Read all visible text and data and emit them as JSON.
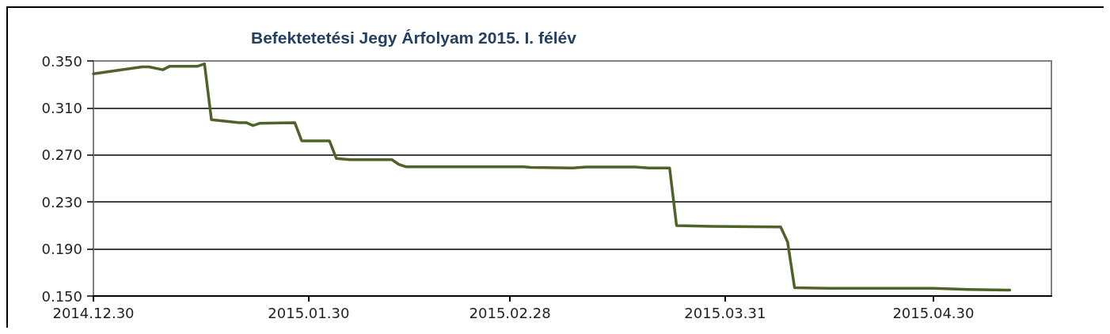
{
  "chart_data": {
    "type": "line",
    "title": "Befektetetési Jegy Árfolyam 2015. I. félév",
    "x": [
      "2014-12-30",
      "2015-01-06",
      "2015-01-07",
      "2015-01-09",
      "2015-01-10",
      "2015-01-14",
      "2015-01-15",
      "2015-01-16",
      "2015-01-20",
      "2015-01-21",
      "2015-01-22",
      "2015-01-23",
      "2015-01-28",
      "2015-01-29",
      "2015-02-02",
      "2015-02-03",
      "2015-02-05",
      "2015-02-11",
      "2015-02-12",
      "2015-02-13",
      "2015-03-02",
      "2015-03-03",
      "2015-03-09",
      "2015-03-11",
      "2015-03-18",
      "2015-03-20",
      "2015-03-23",
      "2015-03-24",
      "2015-03-29",
      "2015-04-08",
      "2015-04-09",
      "2015-04-10",
      "2015-04-15",
      "2015-04-30",
      "2015-05-05",
      "2015-05-11"
    ],
    "values": [
      0.339,
      0.345,
      0.345,
      0.3425,
      0.3455,
      0.3455,
      0.3475,
      0.3,
      0.2975,
      0.2975,
      0.295,
      0.297,
      0.2975,
      0.282,
      0.282,
      0.267,
      0.266,
      0.266,
      0.262,
      0.26,
      0.26,
      0.2595,
      0.259,
      0.2598,
      0.2598,
      0.259,
      0.259,
      0.21,
      0.2093,
      0.2088,
      0.196,
      0.157,
      0.1565,
      0.1565,
      0.1556,
      0.155
    ],
    "color": "#4f6228",
    "xlim": [
      "2014-12-30",
      "2015-05-17"
    ],
    "xticks": [
      {
        "value": "2014-12-30",
        "label": "2014.12.30"
      },
      {
        "value": "2015-01-30",
        "label": "2015.01.30"
      },
      {
        "value": "2015-02-28",
        "label": "2015.02.28"
      },
      {
        "value": "2015-03-31",
        "label": "2015.03.31"
      },
      {
        "value": "2015-04-30",
        "label": "2015.04.30"
      }
    ],
    "ylim": [
      0.15,
      0.35
    ],
    "yticks": [
      {
        "value": 0.15,
        "label": "0.150"
      },
      {
        "value": 0.19,
        "label": "0.190"
      },
      {
        "value": 0.23,
        "label": "0.230"
      },
      {
        "value": 0.27,
        "label": "0.270"
      },
      {
        "value": 0.31,
        "label": "0.310"
      },
      {
        "value": 0.35,
        "label": "0.350"
      }
    ],
    "grid": "y"
  }
}
